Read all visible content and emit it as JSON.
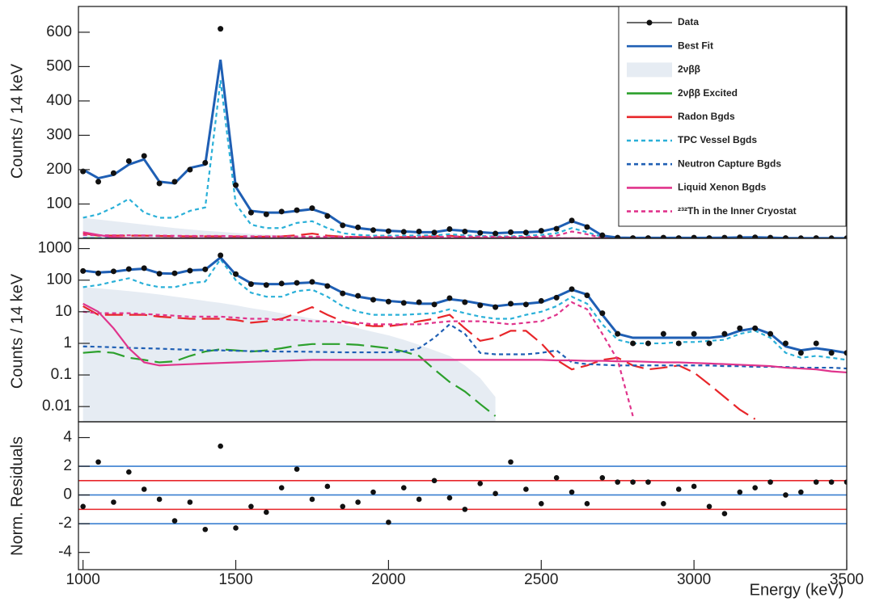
{
  "chart_data": [
    {
      "type": "line",
      "ylabel": "Counts / 14 keV",
      "ylim": [
        0,
        675
      ],
      "yticks": [
        100,
        200,
        300,
        400,
        500,
        600
      ],
      "log": false,
      "legend": "upper right",
      "x": [
        1000,
        1050,
        1100,
        1150,
        1200,
        1250,
        1300,
        1350,
        1400,
        1450,
        1500,
        1550,
        1600,
        1650,
        1700,
        1750,
        1800,
        1850,
        1900,
        1950,
        2000,
        2050,
        2100,
        2150,
        2200,
        2250,
        2300,
        2350,
        2400,
        2450,
        2500,
        2550,
        2600,
        2650,
        2700,
        2750,
        2800,
        2850,
        2900,
        2950,
        3000,
        3050,
        3100,
        3150,
        3200,
        3250,
        3300,
        3350,
        3400,
        3450,
        3500
      ],
      "series": [
        {
          "name": "2νββ",
          "style": "area",
          "color": "#e6ecf3",
          "values": [
            60,
            55,
            50,
            45,
            40,
            35,
            30,
            26,
            22,
            19,
            16,
            13,
            11,
            9,
            7.5,
            6,
            5,
            4,
            3,
            2.3,
            1.8,
            1.3,
            0.9,
            0.6,
            0.4,
            0.2,
            0.08,
            0.02,
            null,
            null,
            null,
            null,
            null,
            null,
            null,
            null,
            null,
            null,
            null,
            null,
            null,
            null,
            null,
            null,
            null,
            null,
            null,
            null,
            null,
            null,
            null
          ]
        },
        {
          "name": "2νββ Excited",
          "style": "line",
          "color": "#2ca02c",
          "dash": "22 8",
          "values": [
            0.5,
            0.55,
            0.5,
            0.35,
            0.3,
            0.25,
            0.27,
            0.4,
            0.55,
            0.65,
            0.6,
            0.55,
            0.6,
            0.7,
            0.85,
            0.95,
            0.95,
            0.95,
            0.9,
            0.8,
            0.7,
            0.55,
            0.4,
            0.15,
            0.06,
            0.03,
            0.012,
            0.005,
            null,
            null,
            null,
            null,
            null,
            null,
            null,
            null,
            null,
            null,
            null,
            null,
            null,
            null,
            null,
            null,
            null,
            null,
            null,
            null,
            null,
            null,
            null
          ]
        },
        {
          "name": "Radon Bgds",
          "style": "line",
          "color": "#e8262a",
          "dash": "22 8",
          "values": [
            15,
            8,
            8,
            8,
            8,
            7,
            6.5,
            6,
            6,
            6,
            5.5,
            4.5,
            5,
            6,
            9,
            14,
            8,
            5,
            4,
            3.5,
            3.5,
            4,
            5,
            6,
            8,
            3,
            1.2,
            1.5,
            2.5,
            2.5,
            1,
            0.3,
            0.15,
            0.2,
            0.3,
            0.35,
            0.2,
            0.15,
            0.17,
            0.2,
            0.12,
            0.05,
            0.02,
            0.008,
            0.004,
            null,
            null,
            null,
            null,
            null,
            null
          ]
        },
        {
          "name": "TPC Vessel Bgds",
          "style": "line",
          "color": "#2ab0d8",
          "dash": "5 4",
          "values": [
            60,
            70,
            90,
            115,
            75,
            60,
            60,
            80,
            90,
            460,
            100,
            40,
            30,
            30,
            45,
            50,
            30,
            15,
            10,
            8,
            8,
            8,
            8.5,
            9,
            12,
            9,
            7,
            6,
            6,
            8,
            10,
            15,
            30,
            18,
            4,
            1.3,
            1,
            1,
            1,
            1.1,
            1.1,
            1.2,
            1.3,
            2,
            2.5,
            1.5,
            0.5,
            0.35,
            0.4,
            0.35,
            0.3
          ]
        },
        {
          "name": "Neutron Capture Bgds",
          "style": "line",
          "color": "#1f5fb4",
          "dash": "5 4",
          "values": [
            0.8,
            0.78,
            0.75,
            0.72,
            0.7,
            0.68,
            0.65,
            0.63,
            0.6,
            0.6,
            0.58,
            0.57,
            0.56,
            0.55,
            0.55,
            0.54,
            0.53,
            0.52,
            0.52,
            0.52,
            0.52,
            0.55,
            0.7,
            1.5,
            4,
            2,
            0.5,
            0.45,
            0.45,
            0.45,
            0.5,
            0.6,
            0.25,
            0.22,
            0.21,
            0.2,
            0.2,
            0.2,
            0.2,
            0.2,
            0.2,
            0.2,
            0.19,
            0.19,
            0.18,
            0.18,
            0.18,
            0.17,
            0.17,
            0.17,
            0.16
          ]
        },
        {
          "name": "Liquid Xenon Bgds",
          "style": "line",
          "color": "#e0348c",
          "values": [
            18,
            10,
            3,
            0.7,
            0.25,
            0.2,
            0.21,
            0.22,
            0.23,
            0.24,
            0.25,
            0.26,
            0.27,
            0.28,
            0.29,
            0.3,
            0.3,
            0.3,
            0.3,
            0.3,
            0.3,
            0.3,
            0.3,
            0.3,
            0.3,
            0.3,
            0.3,
            0.3,
            0.3,
            0.3,
            0.3,
            0.29,
            0.29,
            0.28,
            0.28,
            0.27,
            0.27,
            0.26,
            0.25,
            0.25,
            0.24,
            0.23,
            0.22,
            0.21,
            0.2,
            0.19,
            0.17,
            0.16,
            0.15,
            0.13,
            0.12
          ]
        },
        {
          "name": "²³²Th in the Inner Cryostat",
          "style": "line",
          "color": "#e0348c",
          "dash": "5 4",
          "values": [
            10,
            9,
            9,
            9,
            8.5,
            8,
            7.5,
            7,
            7,
            7,
            6.5,
            6,
            6,
            5.5,
            5.5,
            5,
            5,
            4.5,
            4.5,
            4,
            4,
            4,
            4,
            4.5,
            5,
            5,
            5,
            4.5,
            4,
            4.5,
            5,
            8,
            20,
            12,
            2,
            0.3,
            0.005,
            null,
            null,
            null,
            null,
            null,
            null,
            null,
            null,
            null,
            null,
            null,
            null,
            null,
            null
          ]
        },
        {
          "name": "Best Fit",
          "style": "line",
          "color": "#1f5fb4",
          "width": 3,
          "values": [
            200,
            175,
            185,
            215,
            230,
            165,
            160,
            205,
            215,
            520,
            150,
            80,
            75,
            75,
            80,
            85,
            70,
            40,
            30,
            25,
            22,
            20,
            18,
            18,
            25,
            22,
            18,
            15,
            17,
            18,
            20,
            30,
            50,
            35,
            8,
            2,
            1.5,
            1.5,
            1.5,
            1.5,
            1.5,
            1.5,
            1.7,
            2.5,
            3,
            2,
            0.8,
            0.6,
            0.7,
            0.6,
            0.5
          ]
        },
        {
          "name": "Data",
          "style": "points",
          "color": "#111111",
          "values": [
            195,
            165,
            190,
            225,
            240,
            160,
            165,
            200,
            220,
            610,
            155,
            75,
            70,
            78,
            82,
            88,
            65,
            38,
            32,
            24,
            21,
            19,
            20,
            17,
            27,
            20,
            16,
            14,
            18,
            17,
            22,
            28,
            52,
            33,
            9,
            2,
            1,
            1,
            2,
            1,
            2,
            1,
            2,
            3,
            3,
            2,
            1,
            0.5,
            1,
            0.5,
            0.5
          ]
        }
      ]
    },
    {
      "type": "line",
      "ylabel": "Counts / 14 keV",
      "ylim": [
        0.0033,
        2100
      ],
      "yticks": [
        0.01,
        0.1,
        1,
        10,
        100,
        1000
      ],
      "log": true
    },
    {
      "type": "scatter",
      "ylabel": "Norm. Residuals",
      "xlabel": "Energy (keV)",
      "xlim": [
        985,
        3500
      ],
      "xticks": [
        1000,
        1500,
        2000,
        2500,
        3000,
        3500
      ],
      "ylim": [
        -5.2,
        5.1
      ],
      "yticks": [
        -4,
        -2,
        0,
        2,
        4
      ],
      "color": "#111111",
      "values": [
        -0.8,
        2.3,
        -0.5,
        1.6,
        0.4,
        -0.3,
        -1.8,
        -0.5,
        -2.4,
        3.4,
        -2.3,
        -0.8,
        -1.2,
        0.5,
        1.8,
        -0.3,
        0.6,
        -0.8,
        -0.5,
        0.2,
        -1.9,
        0.5,
        -0.3,
        1.0,
        -0.2,
        -1.0,
        0.8,
        0.1,
        2.3,
        0.4,
        -0.6,
        1.2,
        0.2,
        -0.6,
        1.2,
        0.9,
        0.9,
        0.9,
        -0.6,
        0.4,
        0.6,
        -0.8,
        -1.3,
        0.2,
        0.5,
        0.9,
        0,
        0.2,
        0.9,
        0.9,
        0.9
      ],
      "reference_lines": [
        {
          "value": 0,
          "color": "#3a7fd0"
        },
        {
          "value": 1,
          "color": "#e8262a"
        },
        {
          "value": -1,
          "color": "#e8262a"
        },
        {
          "value": 2,
          "color": "#3a7fd0"
        },
        {
          "value": -2,
          "color": "#3a7fd0"
        }
      ]
    }
  ]
}
